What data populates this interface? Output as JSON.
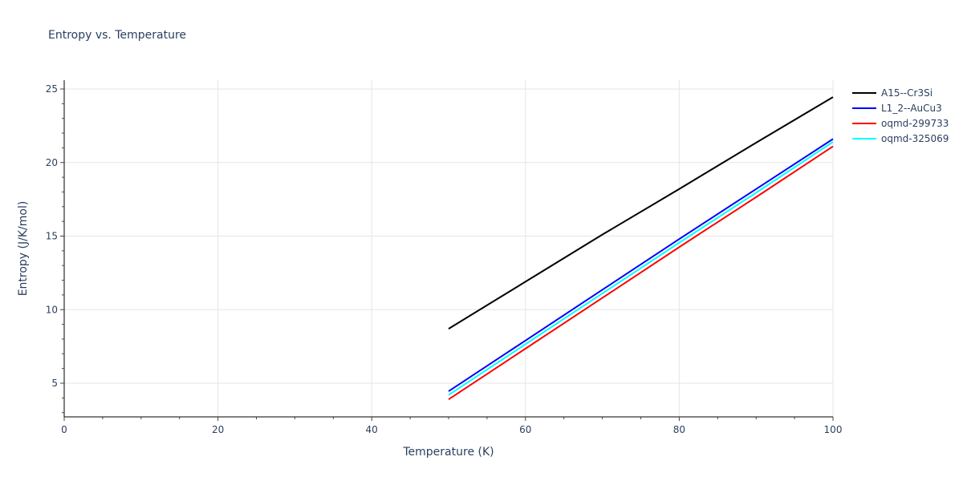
{
  "chart_data": {
    "type": "line",
    "title": "Entropy vs. Temperature",
    "xlabel": "Temperature (K)",
    "ylabel": "Entropy (J/K/mol)",
    "xlim": [
      0,
      100
    ],
    "ylim": [
      2.8,
      25.7
    ],
    "x_ticks": [
      0,
      20,
      40,
      60,
      80,
      100
    ],
    "y_ticks": [
      5,
      10,
      15,
      20,
      25
    ],
    "grid": true,
    "legend_position": "right",
    "series": [
      {
        "name": "A15--Cr3Si",
        "color": "#000000",
        "x": [
          50,
          60,
          70,
          80,
          90,
          100
        ],
        "y": [
          8.7,
          11.9,
          15.1,
          18.2,
          21.35,
          24.45
        ]
      },
      {
        "name": "L1_2--AuCu3",
        "color": "#0000ff",
        "x": [
          50,
          60,
          70,
          80,
          90,
          100
        ],
        "y": [
          4.45,
          7.9,
          11.35,
          14.8,
          18.2,
          21.6
        ]
      },
      {
        "name": "oqmd-299733",
        "color": "#ff0000",
        "x": [
          50,
          60,
          70,
          80,
          90,
          100
        ],
        "y": [
          3.9,
          7.35,
          10.8,
          14.25,
          17.65,
          21.1
        ]
      },
      {
        "name": "oqmd-325069",
        "color": "#00ffff",
        "x": [
          50,
          60,
          70,
          80,
          90,
          100
        ],
        "y": [
          4.2,
          7.65,
          11.1,
          14.55,
          17.95,
          21.4
        ]
      }
    ]
  }
}
